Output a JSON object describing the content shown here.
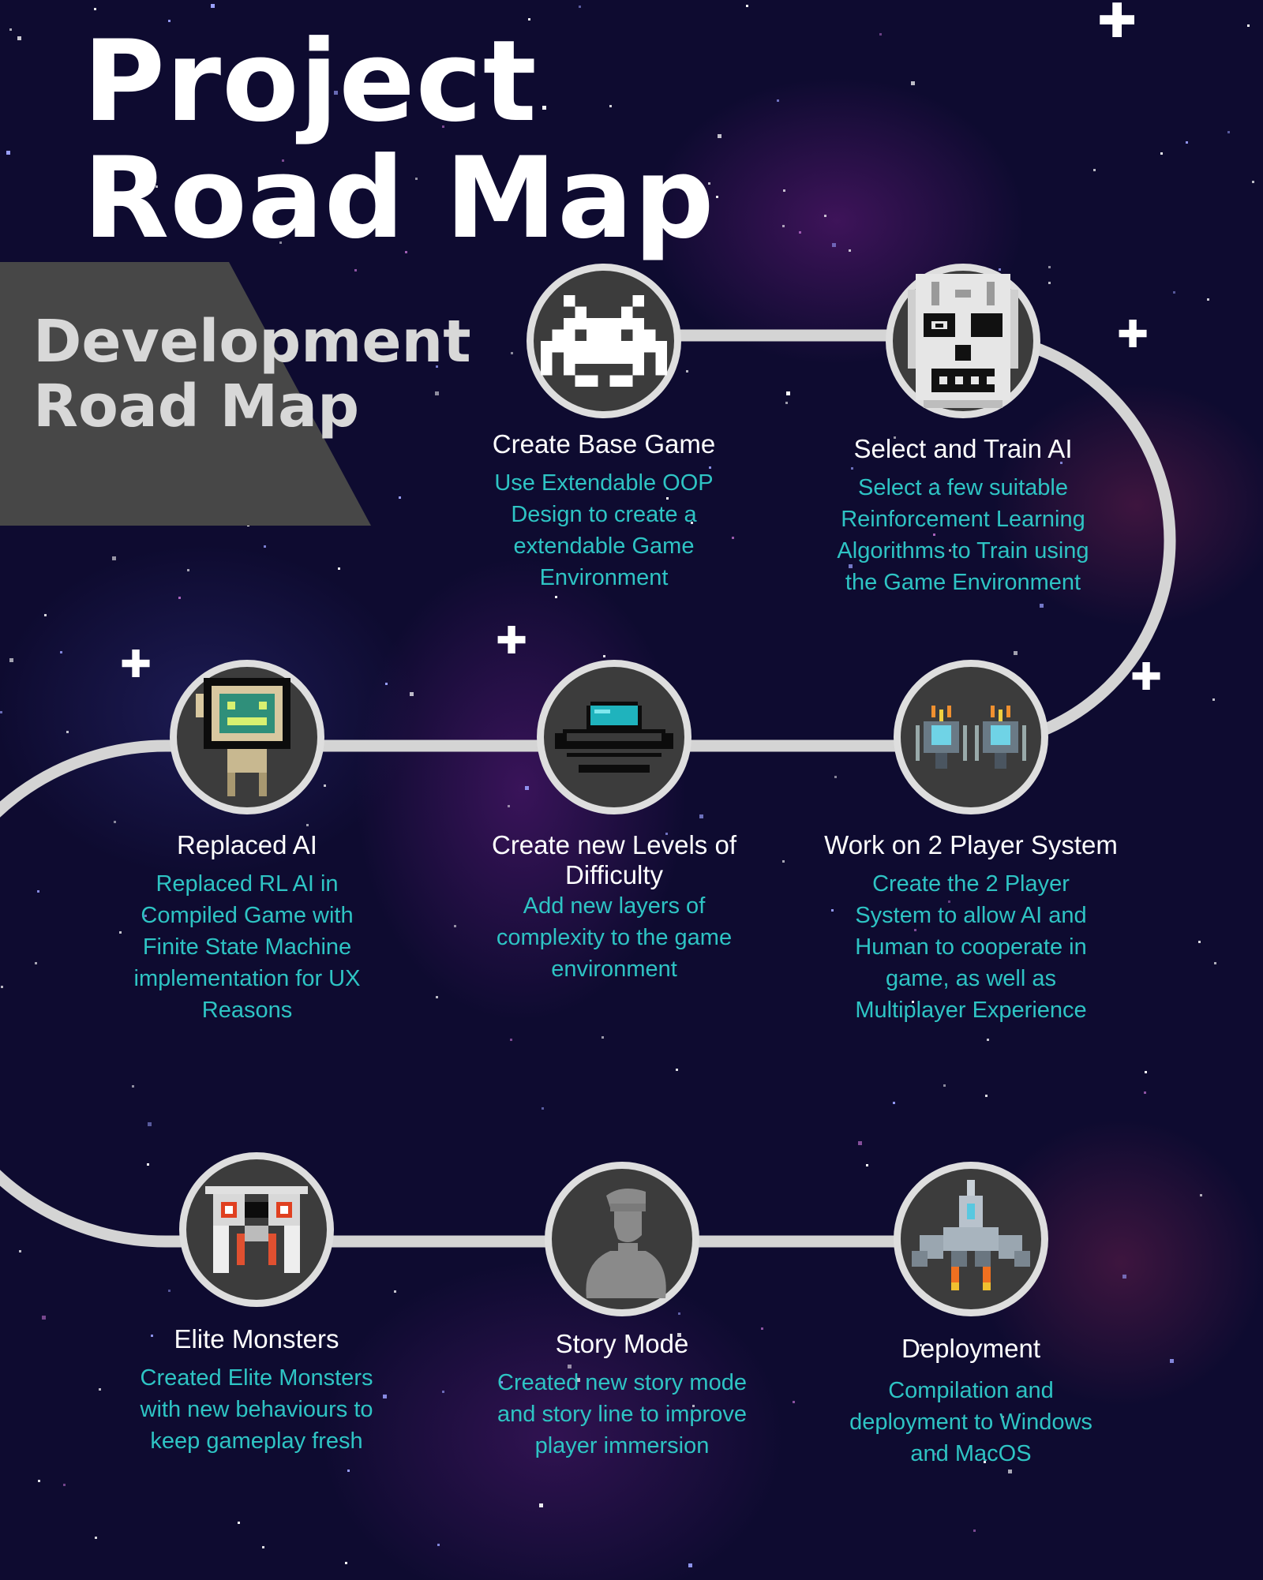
{
  "header": {
    "title_line1": "Project",
    "title_line2": "Road Map",
    "subtitle_line1": "Development",
    "subtitle_line2": "Road Map"
  },
  "colors": {
    "background": "#0e0b30",
    "track": "#d4d4d4",
    "circle_fill": "#3c3c3c",
    "circle_border": "#dedede",
    "title_text": "#ffffff",
    "description_text": "#2ec4c4",
    "banner": "#474747"
  },
  "steps": [
    {
      "icon": "space-invader-icon",
      "title": "Create Base Game",
      "description": "Use Extendable OOP Design to create a extendable Game Environment"
    },
    {
      "icon": "robot-skull-icon",
      "title": "Select and Train AI",
      "description": "Select a few suitable Reinforcement Learning Algorithms to Train using the Game Environment"
    },
    {
      "icon": "twin-ships-icon",
      "title": "Work on 2 Player System",
      "description": "Create the 2 Player System to allow AI and Human to cooperate in game, as well as Multiplayer Experience"
    },
    {
      "icon": "ufo-icon",
      "title": "Create new Levels of Difficulty",
      "description": "Add new layers of complexity to the game environment"
    },
    {
      "icon": "tv-robot-icon",
      "title": "Replaced AI",
      "description": "Replaced RL AI in Compiled Game with Finite State Machine implementation for UX Reasons"
    },
    {
      "icon": "elite-monster-icon",
      "title": "Elite Monsters",
      "description": "Created Elite Monsters with new behaviours to keep gameplay fresh"
    },
    {
      "icon": "soldier-silhouette-icon",
      "title": "Story Mode",
      "description": "Created new story mode and story line to improve player immersion"
    },
    {
      "icon": "fighter-jet-icon",
      "title": "Deployment",
      "description": "Compilation and deployment to Windows and MacOS"
    }
  ]
}
